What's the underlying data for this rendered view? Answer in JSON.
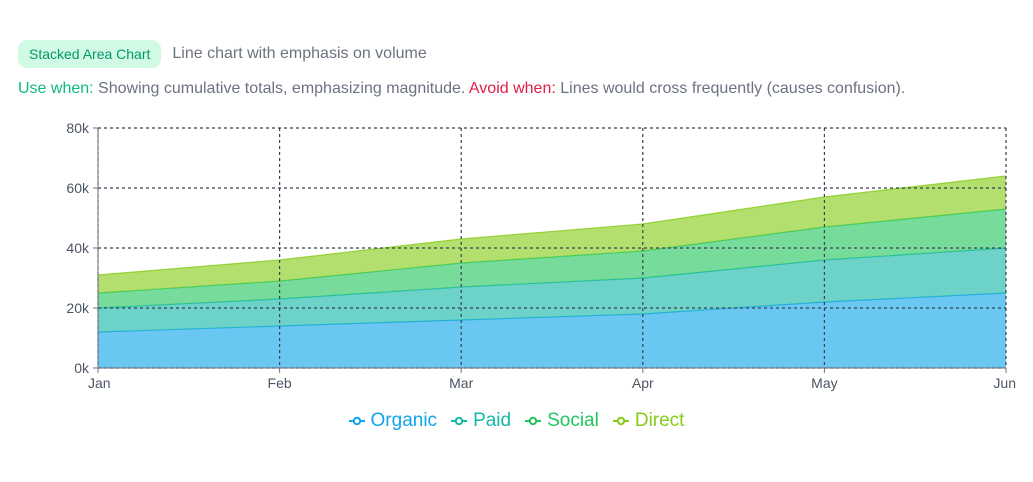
{
  "header": {
    "badge": "Stacked Area Chart",
    "subtitle": "Line chart with emphasis on volume"
  },
  "usage": {
    "use_label": "Use when:",
    "use_text": " Showing cumulative totals, emphasizing magnitude. ",
    "avoid_label": "Avoid when:",
    "avoid_text": " Lines would cross frequently (causes confusion)."
  },
  "colors": {
    "Organic": "#0ea5e9",
    "Paid": "#14b8a6",
    "Social": "#22c55e",
    "Direct": "#84cc16"
  },
  "chart_data": {
    "type": "area",
    "stacked": true,
    "categories": [
      "Jan",
      "Feb",
      "Mar",
      "Apr",
      "May",
      "Jun"
    ],
    "series": [
      {
        "name": "Organic",
        "values": [
          12000,
          14000,
          16000,
          18000,
          22000,
          25000
        ]
      },
      {
        "name": "Paid",
        "values": [
          8000,
          9000,
          11000,
          12000,
          14000,
          15000
        ]
      },
      {
        "name": "Social",
        "values": [
          5000,
          6000,
          8000,
          9000,
          11000,
          13000
        ]
      },
      {
        "name": "Direct",
        "values": [
          6000,
          7000,
          8000,
          9000,
          10000,
          11000
        ]
      }
    ],
    "ylim": [
      0,
      80000
    ],
    "yticks": [
      0,
      20000,
      40000,
      60000,
      80000
    ],
    "ytick_labels": [
      "0k",
      "20k",
      "40k",
      "60k",
      "80k"
    ],
    "grid": true,
    "legend_position": "bottom-center"
  }
}
